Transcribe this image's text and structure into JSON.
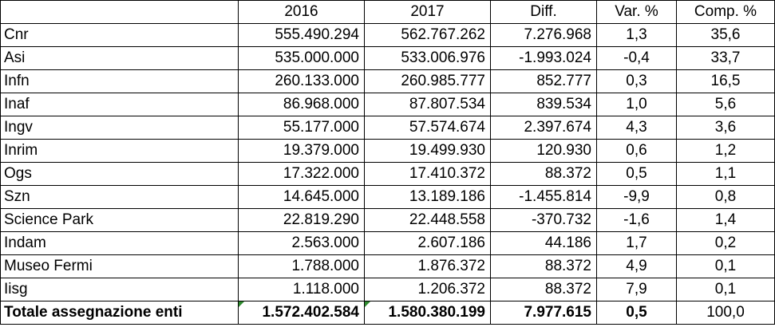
{
  "headers": [
    "",
    "2016",
    "2017",
    "Diff.",
    "Var. %",
    "Comp. %"
  ],
  "rows": [
    {
      "name": "Cnr",
      "y2016": "555.490.294",
      "y2017": "562.767.262",
      "diff": "7.276.968",
      "var": "1,3",
      "comp": "35,6"
    },
    {
      "name": "Asi",
      "y2016": "535.000.000",
      "y2017": "533.006.976",
      "diff": "-1.993.024",
      "var": "-0,4",
      "comp": "33,7"
    },
    {
      "name": "Infn",
      "y2016": "260.133.000",
      "y2017": "260.985.777",
      "diff": "852.777",
      "var": "0,3",
      "comp": "16,5"
    },
    {
      "name": "Inaf",
      "y2016": "86.968.000",
      "y2017": "87.807.534",
      "diff": "839.534",
      "var": "1,0",
      "comp": "5,6"
    },
    {
      "name": "Ingv",
      "y2016": "55.177.000",
      "y2017": "57.574.674",
      "diff": "2.397.674",
      "var": "4,3",
      "comp": "3,6"
    },
    {
      "name": "Inrim",
      "y2016": "19.379.000",
      "y2017": "19.499.930",
      "diff": "120.930",
      "var": "0,6",
      "comp": "1,2"
    },
    {
      "name": "Ogs",
      "y2016": "17.322.000",
      "y2017": "17.410.372",
      "diff": "88.372",
      "var": "0,5",
      "comp": "1,1"
    },
    {
      "name": "Szn",
      "y2016": "14.645.000",
      "y2017": "13.189.186",
      "diff": "-1.455.814",
      "var": "-9,9",
      "comp": "0,8"
    },
    {
      "name": "Science Park",
      "y2016": "22.819.290",
      "y2017": "22.448.558",
      "diff": "-370.732",
      "var": "-1,6",
      "comp": "1,4"
    },
    {
      "name": "Indam",
      "y2016": "2.563.000",
      "y2017": "2.607.186",
      "diff": "44.186",
      "var": "1,7",
      "comp": "0,2"
    },
    {
      "name": "Museo Fermi",
      "y2016": "1.788.000",
      "y2017": "1.876.372",
      "diff": "88.372",
      "var": "4,9",
      "comp": "0,1"
    },
    {
      "name": "Iisg",
      "y2016": "1.118.000",
      "y2017": "1.206.372",
      "diff": "88.372",
      "var": "7,9",
      "comp": "0,1"
    }
  ],
  "total": {
    "name": "Totale assegnazione enti",
    "y2016": "1.572.402.584",
    "y2017": "1.580.380.199",
    "diff": "7.977.615",
    "var": "0,5",
    "comp": "100,0"
  },
  "colors": {
    "border": "#000000",
    "flag": "#2e8b2e"
  }
}
